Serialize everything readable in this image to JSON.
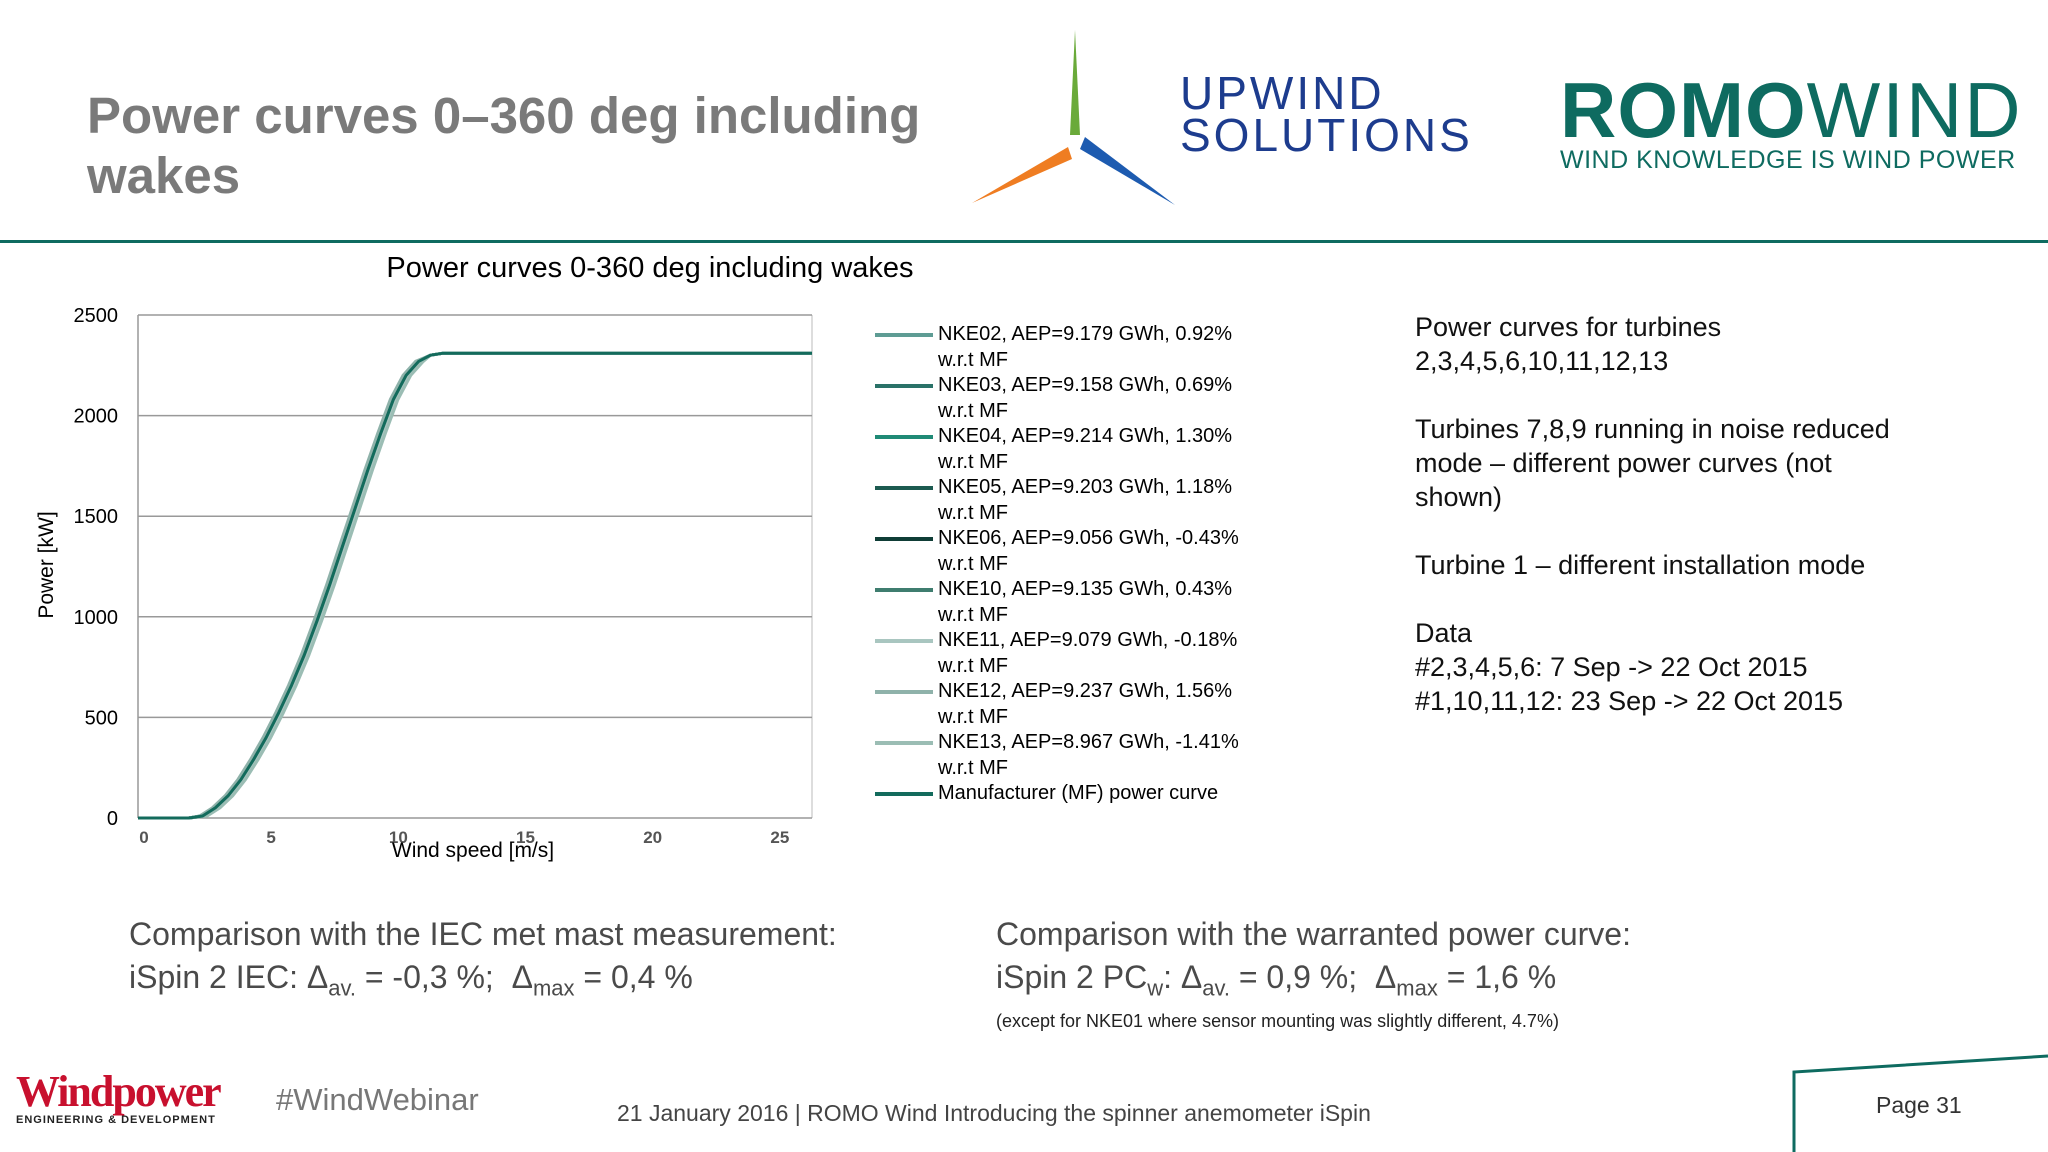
{
  "slide": {
    "title": "Power curves 0–360 deg including wakes"
  },
  "logos": {
    "upwind_line1": "UPWIND",
    "upwind_line2": "SOLUTIONS",
    "romo_bold": "ROMO",
    "romo_light": "WIND",
    "romo_tagline": "WIND KNOWLEDGE IS WIND POWER",
    "windpower_main": "Windpower",
    "windpower_sub": "ENGINEERING & DEVELOPMENT"
  },
  "chart_data": {
    "type": "line",
    "title": "Power curves 0-360 deg including wakes",
    "xlabel": "Wind speed [m/s]",
    "ylabel": "Power [kW]",
    "xlim": [
      0,
      26.5
    ],
    "ylim": [
      0,
      2500
    ],
    "xticks": [
      0,
      5,
      10,
      15,
      20,
      25
    ],
    "yticks": [
      0,
      500,
      1000,
      1500,
      2000,
      2500
    ],
    "grid": "horizontal",
    "legend_position": "right",
    "x": [
      0,
      1,
      2,
      2.5,
      3,
      3.5,
      4,
      4.5,
      5,
      5.5,
      6,
      6.5,
      7,
      7.5,
      8,
      8.5,
      9,
      9.5,
      10,
      10.5,
      11,
      11.5,
      12,
      12.5,
      13,
      14,
      15,
      16,
      18,
      20,
      22,
      24,
      26.5
    ],
    "series": [
      {
        "name": "NKE02, AEP=9.179 GWh, 0.92% w.r.t MF",
        "color": "#5e9c94",
        "offset": 0.0
      },
      {
        "name": "NKE03, AEP=9.158 GWh, 0.69% w.r.t MF",
        "color": "#2a7268",
        "offset": 0.05
      },
      {
        "name": "NKE04, AEP=9.214 GWh, 1.30% w.r.t MF",
        "color": "#1f8a76",
        "offset": -0.05
      },
      {
        "name": "NKE05, AEP=9.203 GWh, 1.18% w.r.t MF",
        "color": "#1c5a50",
        "offset": -0.03
      },
      {
        "name": "NKE06, AEP=9.056 GWh, -0.43% w.r.t MF",
        "color": "#0f3d36",
        "offset": 0.15
      },
      {
        "name": "NKE10, AEP=9.135 GWh, 0.43% w.r.t MF",
        "color": "#3f7d6f",
        "offset": 0.08
      },
      {
        "name": "NKE11, AEP=9.079 GWh, -0.18% w.r.t MF",
        "color": "#a9c6c0",
        "offset": 0.12
      },
      {
        "name": "NKE12, AEP=9.237 GWh, 1.56% w.r.t MF",
        "color": "#8fb2aa",
        "offset": -0.08
      },
      {
        "name": "NKE13, AEP=8.967 GWh, -1.41% w.r.t MF",
        "color": "#9bbdb4",
        "offset": 0.22
      },
      {
        "name": "Manufacturer (MF) power curve",
        "color": "#136b5c",
        "offset": 0.04
      }
    ],
    "base_values": [
      0,
      0,
      0,
      10,
      50,
      110,
      190,
      290,
      400,
      525,
      660,
      810,
      980,
      1160,
      1350,
      1540,
      1730,
      1910,
      2080,
      2200,
      2270,
      2300,
      2310,
      2310,
      2310,
      2310,
      2310,
      2310,
      2310,
      2310,
      2310,
      2310,
      2310
    ]
  },
  "legend": {
    "items": [
      {
        "line1": "NKE02, AEP=9.179 GWh, 0.92%",
        "line2": "w.r.t MF",
        "color": "#5e9c94"
      },
      {
        "line1": "NKE03, AEP=9.158 GWh, 0.69%",
        "line2": "w.r.t MF",
        "color": "#2a7268"
      },
      {
        "line1": "NKE04, AEP=9.214 GWh, 1.30%",
        "line2": "w.r.t MF",
        "color": "#1f8a76"
      },
      {
        "line1": "NKE05, AEP=9.203 GWh, 1.18%",
        "line2": "w.r.t MF",
        "color": "#1c5a50"
      },
      {
        "line1": "NKE06, AEP=9.056 GWh, -0.43%",
        "line2": "w.r.t MF",
        "color": "#0f3d36"
      },
      {
        "line1": "NKE10, AEP=9.135 GWh, 0.43%",
        "line2": "w.r.t MF",
        "color": "#3f7d6f"
      },
      {
        "line1": "NKE11, AEP=9.079 GWh, -0.18%",
        "line2": "w.r.t MF",
        "color": "#a9c6c0"
      },
      {
        "line1": "NKE12, AEP=9.237 GWh, 1.56%",
        "line2": "w.r.t MF",
        "color": "#8fb2aa"
      },
      {
        "line1": "NKE13, AEP=8.967 GWh, -1.41%",
        "line2": "w.r.t MF",
        "color": "#9bbdb4"
      },
      {
        "line1": "Manufacturer (MF) power curve",
        "line2": "",
        "color": "#136b5c"
      }
    ]
  },
  "notes": {
    "p1": "Power curves for turbines 2,3,4,5,6,10,11,12,13",
    "p2": "Turbines 7,8,9 running in noise reduced mode – different power curves (not shown)",
    "p3": "Turbine 1 – different installation mode",
    "p4_line1": "Data",
    "p4_line2": "#2,3,4,5,6: 7 Sep -> 22 Oct 2015",
    "p4_line3": "#1,10,11,12: 23 Sep -> 22 Oct 2015"
  },
  "comparison_iec": {
    "heading": "Comparison with the IEC met mast measurement:",
    "prefix": "iSpin 2 IEC: ",
    "delta": "Δ",
    "av_sub": "av.",
    "av_value": " = -0,3 %;  ",
    "max_sub": "max",
    "max_value": " = 0,4 %"
  },
  "comparison_warranted": {
    "heading": "Comparison with the warranted power curve:",
    "prefix": "iSpin 2 PC",
    "pc_sub": "w",
    "colon": ": ",
    "delta": "Δ",
    "av_sub": "av.",
    "av_value": " = 0,9 %;  ",
    "max_sub": "max",
    "max_value": " = 1,6 %",
    "note": "(except for NKE01 where sensor mounting was slightly different, 4.7%)"
  },
  "footer": {
    "hashtag": "#WindWebinar",
    "text": "21 January 2016 | ROMO Wind Introducing the spinner anemometer iSpin",
    "page": "Page 31"
  }
}
